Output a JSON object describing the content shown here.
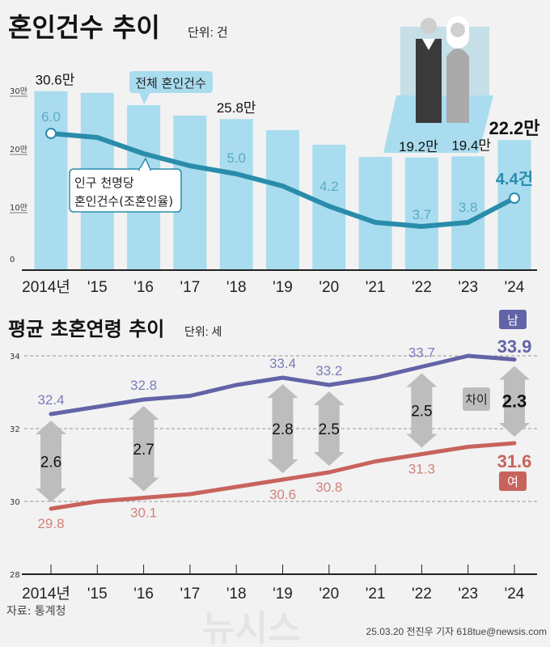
{
  "header": {
    "title": "혼인건수 추이",
    "unit": "단위: 건"
  },
  "chart_data": [
    {
      "type": "bar",
      "title": "혼인건수 추이",
      "unit": "단위: 건",
      "categories": [
        "2014년",
        "'15",
        "'16",
        "'17",
        "'18",
        "'19",
        "'20",
        "'21",
        "'22",
        "'23",
        "'24"
      ],
      "yticks": [
        "30만",
        "20만",
        "10만",
        "0"
      ],
      "ylim": [
        0,
        300000
      ],
      "series": [
        {
          "name": "전체 혼인건수",
          "unit": "만",
          "values": [
            30.6,
            30.3,
            28.2,
            26.4,
            25.8,
            23.9,
            21.4,
            19.3,
            19.2,
            19.4,
            22.2
          ],
          "labels": {
            "0": "30.6만",
            "4": "25.8만",
            "8": "19.2만",
            "9": "19.4만",
            "10": "22.2만"
          },
          "color": "#a9dcee"
        },
        {
          "name": "인구 천명당 혼인건수(조혼인율)",
          "type": "line",
          "values": [
            6.0,
            5.9,
            5.5,
            5.2,
            5.0,
            4.7,
            4.2,
            3.8,
            3.7,
            3.8,
            4.4
          ],
          "labels": {
            "0": "6.0",
            "4": "5.0",
            "6": "4.2",
            "8": "3.7",
            "9": "3.8",
            "10": "4.4건"
          },
          "color": "#2a8cab"
        }
      ],
      "callouts": {
        "total": "전체 혼인건수",
        "rate_line1": "인구 천명당",
        "rate_line2": "혼인건수(조혼인율)"
      }
    },
    {
      "type": "line",
      "title": "평균 초혼연령 추이",
      "unit": "단위: 세",
      "categories": [
        "2014년",
        "'15",
        "'16",
        "'17",
        "'18",
        "'19",
        "'20",
        "'21",
        "'22",
        "'23",
        "'24"
      ],
      "ylim": [
        28,
        34
      ],
      "yticks": [
        "34",
        "32",
        "30",
        "28"
      ],
      "grid": true,
      "series": [
        {
          "name": "남",
          "values": [
            32.4,
            32.6,
            32.8,
            32.9,
            33.2,
            33.4,
            33.2,
            33.4,
            33.7,
            34.0,
            33.9
          ],
          "labels": {
            "0": "32.4",
            "2": "32.8",
            "5": "33.4",
            "6": "33.2",
            "8": "33.7",
            "10": "33.9"
          },
          "color": "#6264a7"
        },
        {
          "name": "여",
          "values": [
            29.8,
            30.0,
            30.1,
            30.2,
            30.4,
            30.6,
            30.8,
            31.1,
            31.3,
            31.5,
            31.6
          ],
          "labels": {
            "0": "29.8",
            "2": "30.1",
            "5": "30.6",
            "6": "30.8",
            "8": "31.3",
            "10": "31.6"
          },
          "color": "#c8635c"
        }
      ],
      "gaps": {
        "0": "2.6",
        "2": "2.7",
        "5": "2.8",
        "6": "2.5",
        "8": "2.5",
        "10": "2.3"
      },
      "gap_label": "차이"
    }
  ],
  "footer": {
    "source": "자료: 통계청",
    "credit": "25.03.20 전진우 기자 618tue@newsis.com",
    "watermark": "뉴시스"
  }
}
